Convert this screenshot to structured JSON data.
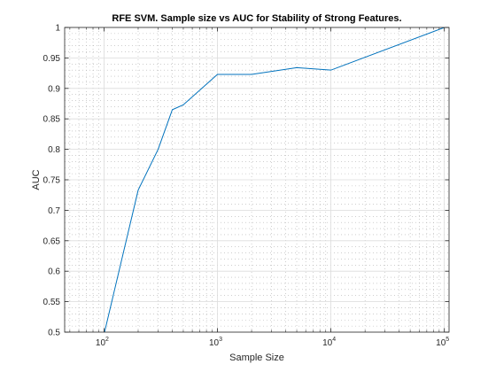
{
  "chart_data": {
    "type": "line",
    "title": "RFE SVM. Sample size vs AUC for Stability of Strong Features.",
    "xlabel": "Sample Size",
    "ylabel": "AUC",
    "xscale": "log",
    "xlim": [
      45,
      110000
    ],
    "ylim": [
      0.5,
      1.0
    ],
    "grid": true,
    "minor_grid": true,
    "legend": "none",
    "line_color": "#0072BD",
    "x_ticks": [
      {
        "value": 100,
        "base": "10",
        "exp": "2"
      },
      {
        "value": 1000,
        "base": "10",
        "exp": "3"
      },
      {
        "value": 10000,
        "base": "10",
        "exp": "4"
      },
      {
        "value": 100000,
        "base": "10",
        "exp": "5"
      }
    ],
    "y_ticks": [
      {
        "value": 0.5,
        "label": "0.5"
      },
      {
        "value": 0.55,
        "label": "0.55"
      },
      {
        "value": 0.6,
        "label": "0.6"
      },
      {
        "value": 0.65,
        "label": "0.65"
      },
      {
        "value": 0.7,
        "label": "0.7"
      },
      {
        "value": 0.75,
        "label": "0.75"
      },
      {
        "value": 0.8,
        "label": "0.8"
      },
      {
        "value": 0.85,
        "label": "0.85"
      },
      {
        "value": 0.9,
        "label": "0.9"
      },
      {
        "value": 0.95,
        "label": "0.95"
      },
      {
        "value": 1.0,
        "label": "1"
      }
    ],
    "series": [
      {
        "x": [
          80,
          200,
          300,
          400,
          500,
          1000,
          2000,
          5000,
          10000,
          100000
        ],
        "y": [
          0.42,
          0.733,
          0.8,
          0.865,
          0.873,
          0.923,
          0.923,
          0.934,
          0.93,
          1.0
        ]
      }
    ]
  }
}
